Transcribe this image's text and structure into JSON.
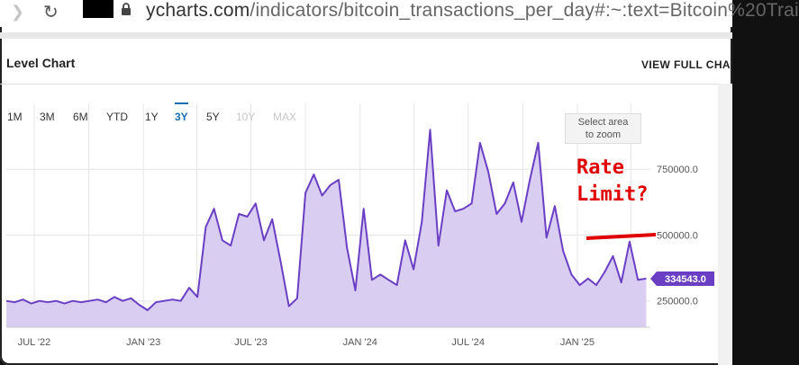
{
  "browser": {
    "url_domain": "ycharts.com",
    "url_path": "/indicators/bitcoin_transactions_per_day#:~:text=Bitcoin%20Trai"
  },
  "card": {
    "title": "Level Chart",
    "view_full": "VIEW FULL CHA"
  },
  "range_buttons": [
    {
      "label": "1M",
      "state": "normal"
    },
    {
      "label": "3M",
      "state": "normal"
    },
    {
      "label": "6M",
      "state": "normal"
    },
    {
      "label": "YTD",
      "state": "normal"
    },
    {
      "label": "1Y",
      "state": "normal"
    },
    {
      "label": "3Y",
      "state": "active"
    },
    {
      "label": "5Y",
      "state": "normal"
    },
    {
      "label": "10Y",
      "state": "disabled"
    },
    {
      "label": "MAX",
      "state": "disabled"
    }
  ],
  "zoom_hint": "Select area\nto zoom",
  "annotation": {
    "text": "Rate\nLimit?",
    "color": "#e00000"
  },
  "colors": {
    "line": "#6a3fc4",
    "fill": "#d9cdf2",
    "badge": "#6a3fc4",
    "active": "#1a6fb5"
  },
  "chart_data": {
    "type": "area",
    "x_tick_labels": [
      "JUL '22",
      "JAN '23",
      "JUL '23",
      "JAN '24",
      "JUL '24",
      "JAN '25"
    ],
    "y_tick_labels": [
      "250000.0",
      "500000.0",
      "750000.0"
    ],
    "y_ticks": [
      250000,
      500000,
      750000
    ],
    "ylim": [
      150000,
      1000000
    ],
    "last_value_label": "334543.0",
    "x_start": "2022-05-15",
    "series": [
      {
        "x": [
          "2022-05-15",
          "2022-05-29",
          "2022-06-12",
          "2022-06-26",
          "2022-07-10",
          "2022-07-24",
          "2022-08-07",
          "2022-08-21",
          "2022-09-04",
          "2022-09-18",
          "2022-10-02",
          "2022-10-16",
          "2022-10-30",
          "2022-11-13",
          "2022-11-27",
          "2022-12-11",
          "2022-12-25",
          "2023-01-08",
          "2023-01-22",
          "2023-02-05",
          "2023-02-19",
          "2023-03-05",
          "2023-03-19",
          "2023-04-02",
          "2023-04-16",
          "2023-04-30",
          "2023-05-14",
          "2023-05-28",
          "2023-06-11",
          "2023-06-25",
          "2023-07-09",
          "2023-07-23",
          "2023-08-06",
          "2023-08-20",
          "2023-09-03",
          "2023-09-17",
          "2023-10-01",
          "2023-10-15",
          "2023-10-29",
          "2023-11-12",
          "2023-11-26",
          "2023-12-10",
          "2023-12-24",
          "2024-01-07",
          "2024-01-21",
          "2024-02-04",
          "2024-02-18",
          "2024-03-03",
          "2024-03-17",
          "2024-03-31",
          "2024-04-14",
          "2024-04-28",
          "2024-05-12",
          "2024-05-26",
          "2024-06-09",
          "2024-06-23",
          "2024-07-07",
          "2024-07-21",
          "2024-08-04",
          "2024-08-18",
          "2024-09-01",
          "2024-09-15",
          "2024-09-29",
          "2024-10-13",
          "2024-10-27",
          "2024-11-10",
          "2024-11-24",
          "2024-12-08",
          "2024-12-22",
          "2025-01-05",
          "2025-01-19",
          "2025-02-02",
          "2025-02-16",
          "2025-03-02",
          "2025-03-16",
          "2025-03-30",
          "2025-04-13",
          "2025-04-27"
        ],
        "values": [
          250000,
          245000,
          255000,
          240000,
          250000,
          245000,
          250000,
          240000,
          250000,
          245000,
          250000,
          255000,
          245000,
          265000,
          250000,
          260000,
          235000,
          215000,
          245000,
          250000,
          255000,
          250000,
          300000,
          265000,
          530000,
          600000,
          480000,
          460000,
          580000,
          570000,
          620000,
          480000,
          560000,
          400000,
          230000,
          260000,
          660000,
          730000,
          650000,
          690000,
          710000,
          450000,
          290000,
          600000,
          330000,
          350000,
          330000,
          310000,
          480000,
          370000,
          550000,
          900000,
          460000,
          670000,
          590000,
          600000,
          620000,
          850000,
          740000,
          580000,
          620000,
          700000,
          550000,
          710000,
          850000,
          490000,
          610000,
          440000,
          350000,
          310000,
          335000,
          310000,
          360000,
          420000,
          320000,
          475000,
          330000,
          334543
        ]
      }
    ]
  }
}
